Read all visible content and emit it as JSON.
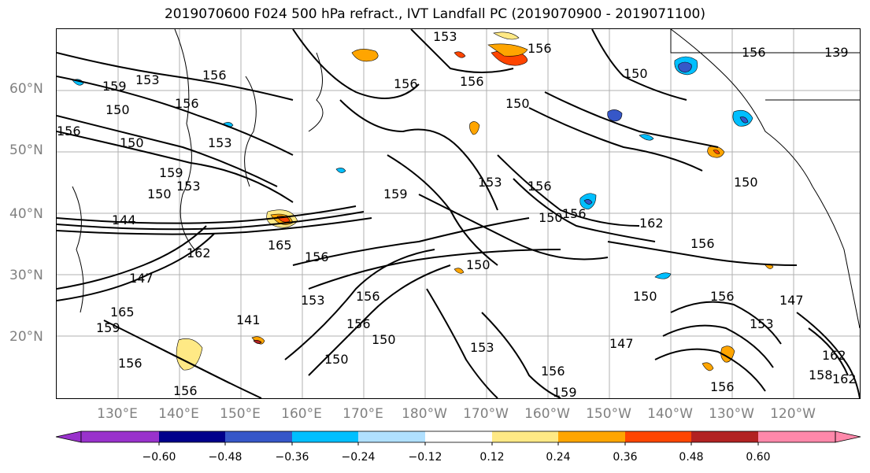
{
  "title": "2019070600 F024 500 hPa refract., IVT Landfall PC (2019070900 - 2019071100)",
  "lat_labels": [
    "60°N",
    "50°N",
    "40°N",
    "30°N",
    "20°N"
  ],
  "lon_labels": [
    "130°E",
    "140°E",
    "150°E",
    "160°E",
    "170°E",
    "180°W",
    "170°W",
    "160°W",
    "150°W",
    "140°W",
    "130°W",
    "120°W"
  ],
  "contour_labels": [
    "153",
    "156",
    "159",
    "153",
    "156",
    "150",
    "150",
    "153",
    "156",
    "159",
    "150",
    "153",
    "144",
    "162",
    "147",
    "165",
    "159",
    "156",
    "156",
    "165",
    "156",
    "153",
    "156",
    "159",
    "156",
    "150",
    "150",
    "153",
    "156",
    "141",
    "150",
    "156",
    "150",
    "156",
    "150",
    "156",
    "162",
    "156",
    "150",
    "147",
    "153",
    "159",
    "156",
    "147",
    "153",
    "156",
    "156",
    "150",
    "156",
    "150",
    "162",
    "158",
    "162",
    "139",
    "156"
  ],
  "colorbar": {
    "ticks": [
      "−0.60",
      "−0.48",
      "−0.36",
      "−0.24",
      "−0.12",
      "0.12",
      "0.24",
      "0.36",
      "0.48",
      "0.60"
    ],
    "colors": [
      "#9932CC",
      "#00008B",
      "#3657C8",
      "#00BFFF",
      "#B0E0FF",
      "#FFFFFF",
      "#FFE985",
      "#FFA500",
      "#FF4500",
      "#B22222",
      "#FF88AA"
    ]
  },
  "fill_colors": {
    "light_blue": "#B0E0FF",
    "blue": "#00BFFF",
    "royal": "#3657C8",
    "yellow": "#FFE985",
    "orange": "#FFA500",
    "red_orange": "#FF4500",
    "dark_red": "#B22222"
  }
}
